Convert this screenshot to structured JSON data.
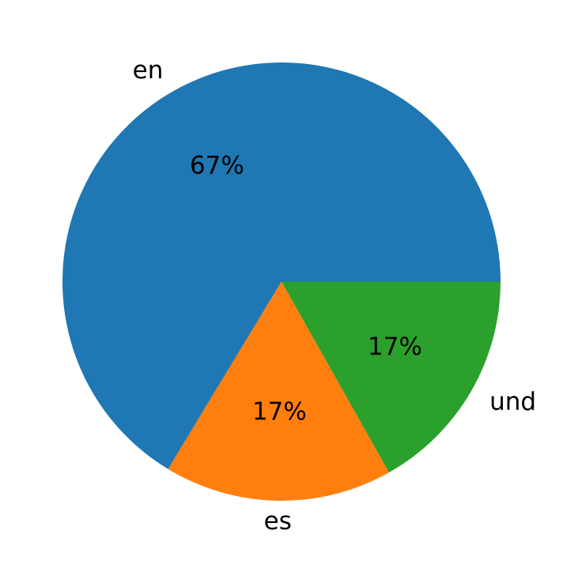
{
  "chart_data": {
    "type": "pie",
    "categories": [
      "en",
      "es",
      "und"
    ],
    "values": [
      67,
      17,
      17
    ],
    "value_labels": [
      "67%",
      "17%",
      "17%"
    ],
    "colors": [
      "#1f77b4",
      "#ff7f0e",
      "#2ca02c"
    ],
    "start_angle": 0,
    "counterclock": true
  }
}
